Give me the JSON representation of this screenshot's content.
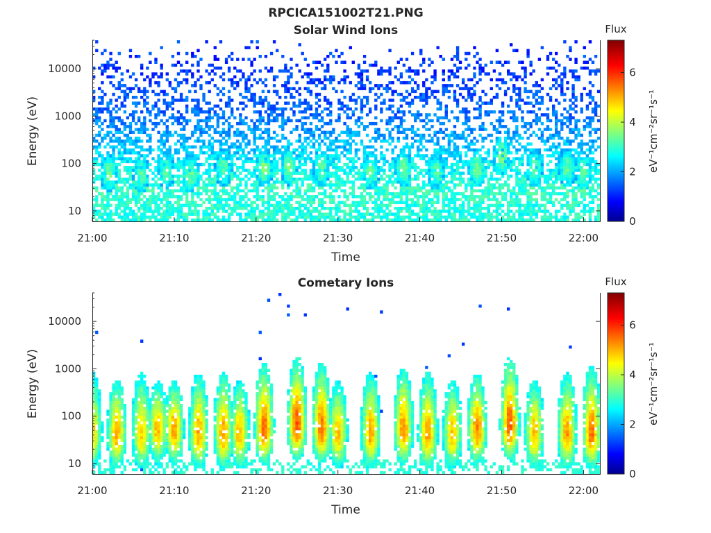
{
  "figure": {
    "title": "RPCICA151002T21.PNG"
  },
  "colors": {
    "colormap": [
      "#00008f",
      "#0000ff",
      "#0080ff",
      "#00ffff",
      "#80ff80",
      "#ffff00",
      "#ff8000",
      "#ff0000",
      "#800000"
    ]
  },
  "chart_data": [
    {
      "type": "heatmap",
      "title": "Solar Wind Ions",
      "xlabel": "Time",
      "ylabel": "Energy (eV)",
      "x_range": [
        "21:00",
        "22:02"
      ],
      "x_ticks": [
        "21:00",
        "21:10",
        "21:20",
        "21:30",
        "21:40",
        "21:50",
        "22:00"
      ],
      "y_scale": "log",
      "y_range": [
        6,
        40000
      ],
      "y_ticks": [
        "10",
        "100",
        "1000",
        "10000"
      ],
      "colorbar": {
        "title": "Flux",
        "label": "eV⁻¹cm⁻²sr⁻¹s⁻¹",
        "range": [
          0,
          7.3
        ],
        "ticks": [
          "0",
          "2",
          "4",
          "6"
        ]
      },
      "structure": {
        "background_flux_by_energy": [
          {
            "energy": 10,
            "flux": 3.0
          },
          {
            "energy": 30,
            "flux": 3.1
          },
          {
            "energy": 100,
            "flux": 2.7
          },
          {
            "energy": 300,
            "flux": 2.2
          },
          {
            "energy": 1000,
            "flux": 1.7
          },
          {
            "energy": 10000,
            "flux": 1.3
          }
        ],
        "fill_fraction_by_energy": [
          {
            "energy": 6,
            "fraction": 0.7
          },
          {
            "energy": 100,
            "fraction": 0.55
          },
          {
            "energy": 1000,
            "fraction": 0.4
          },
          {
            "energy": 10000,
            "fraction": 0.25
          },
          {
            "energy": 30000,
            "fraction": 0.03
          }
        ],
        "bursts": [
          {
            "time": "21:02",
            "energy": 60,
            "flux": 3.6
          },
          {
            "time": "21:06",
            "energy": 60,
            "flux": 3.4
          },
          {
            "time": "21:09",
            "energy": 70,
            "flux": 3.4
          },
          {
            "time": "21:12",
            "energy": 60,
            "flux": 3.5
          },
          {
            "time": "21:16",
            "energy": 80,
            "flux": 3.5
          },
          {
            "time": "21:21",
            "energy": 80,
            "flux": 3.8
          },
          {
            "time": "21:24",
            "energy": 90,
            "flux": 3.6
          },
          {
            "time": "21:28",
            "energy": 80,
            "flux": 3.6
          },
          {
            "time": "21:34",
            "energy": 70,
            "flux": 3.5
          },
          {
            "time": "21:38",
            "energy": 80,
            "flux": 3.6
          },
          {
            "time": "21:42",
            "energy": 70,
            "flux": 3.4
          },
          {
            "time": "21:47",
            "energy": 80,
            "flux": 3.7
          },
          {
            "time": "21:50",
            "energy": 150,
            "flux": 3.9
          },
          {
            "time": "21:54",
            "energy": 80,
            "flux": 3.5
          },
          {
            "time": "21:58",
            "energy": 80,
            "flux": 3.5
          },
          {
            "time": "22:00",
            "energy": 70,
            "flux": 3.5
          }
        ]
      }
    },
    {
      "type": "heatmap",
      "title": "Cometary Ions",
      "xlabel": "Time",
      "ylabel": "Energy (eV)",
      "x_range": [
        "21:00",
        "22:02"
      ],
      "x_ticks": [
        "21:00",
        "21:10",
        "21:20",
        "21:30",
        "21:40",
        "21:50",
        "22:00"
      ],
      "y_scale": "log",
      "y_range": [
        6,
        40000
      ],
      "y_ticks": [
        "10",
        "100",
        "1000",
        "10000"
      ],
      "colorbar": {
        "title": "Flux",
        "label": "eV⁻¹cm⁻²sr⁻¹s⁻¹",
        "range": [
          0,
          7.3
        ],
        "ticks": [
          "0",
          "2",
          "4",
          "6"
        ]
      },
      "structure": {
        "low_energy_floor": {
          "energy_max": 12,
          "flux": 3.0,
          "fill_fraction": 0.35
        },
        "sparse_high_energy_fraction": 0.004,
        "bursts": [
          {
            "time": "21:00",
            "energy": 40,
            "flux": 4.8,
            "top_energy": 400
          },
          {
            "time": "21:03",
            "energy": 40,
            "flux": 5.2,
            "top_energy": 300
          },
          {
            "time": "21:06",
            "energy": 40,
            "flux": 4.9,
            "top_energy": 400
          },
          {
            "time": "21:08",
            "energy": 50,
            "flux": 5.1,
            "top_energy": 300
          },
          {
            "time": "21:10",
            "energy": 50,
            "flux": 5.3,
            "top_energy": 300
          },
          {
            "time": "21:13",
            "energy": 40,
            "flux": 5.2,
            "top_energy": 400
          },
          {
            "time": "21:16",
            "energy": 40,
            "flux": 5.3,
            "top_energy": 400
          },
          {
            "time": "21:18",
            "energy": 40,
            "flux": 5.0,
            "top_energy": 300
          },
          {
            "time": "21:21",
            "energy": 50,
            "flux": 5.7,
            "top_energy": 600
          },
          {
            "time": "21:25",
            "energy": 60,
            "flux": 5.8,
            "top_energy": 800
          },
          {
            "time": "21:28",
            "energy": 50,
            "flux": 5.6,
            "top_energy": 600
          },
          {
            "time": "21:30",
            "energy": 40,
            "flux": 5.0,
            "top_energy": 300
          },
          {
            "time": "21:34",
            "energy": 40,
            "flux": 5.2,
            "top_energy": 400
          },
          {
            "time": "21:38",
            "energy": 50,
            "flux": 5.4,
            "top_energy": 500
          },
          {
            "time": "21:41",
            "energy": 40,
            "flux": 5.3,
            "top_energy": 400
          },
          {
            "time": "21:44",
            "energy": 40,
            "flux": 5.0,
            "top_energy": 300
          },
          {
            "time": "21:47",
            "energy": 50,
            "flux": 5.5,
            "top_energy": 400
          },
          {
            "time": "21:51",
            "energy": 60,
            "flux": 5.8,
            "top_energy": 800
          },
          {
            "time": "21:54",
            "energy": 40,
            "flux": 5.1,
            "top_energy": 300
          },
          {
            "time": "21:58",
            "energy": 40,
            "flux": 5.3,
            "top_energy": 400
          },
          {
            "time": "22:01",
            "energy": 40,
            "flux": 5.6,
            "top_energy": 500
          }
        ]
      }
    }
  ]
}
